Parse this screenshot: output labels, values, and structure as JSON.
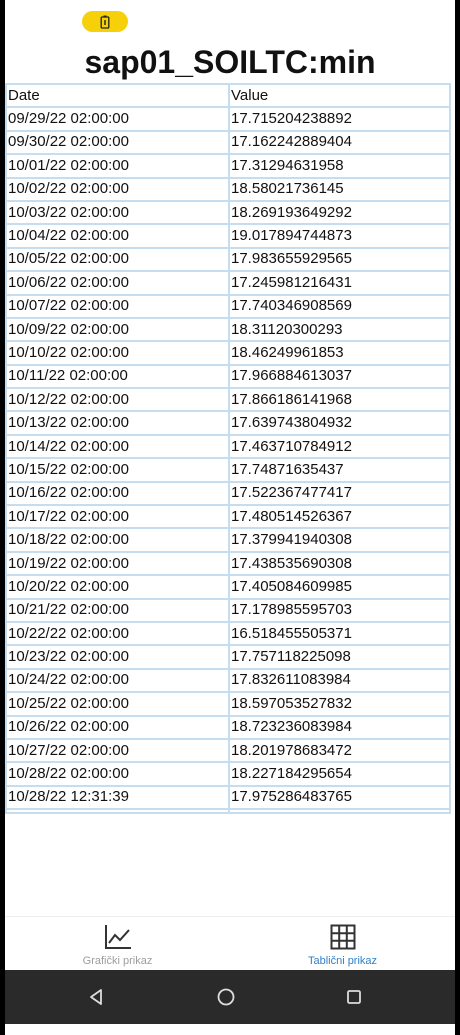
{
  "status": {
    "icon": "battery-icon"
  },
  "title": "sap01_SOILTC:min",
  "table": {
    "headers": [
      "Date",
      "Value"
    ],
    "rows": [
      [
        "09/29/22 02:00:00",
        "17.715204238892"
      ],
      [
        "09/30/22 02:00:00",
        "17.162242889404"
      ],
      [
        "10/01/22 02:00:00",
        "17.31294631958"
      ],
      [
        "10/02/22 02:00:00",
        "18.58021736145"
      ],
      [
        "10/03/22 02:00:00",
        "18.269193649292"
      ],
      [
        "10/04/22 02:00:00",
        "19.017894744873"
      ],
      [
        "10/05/22 02:00:00",
        "17.983655929565"
      ],
      [
        "10/06/22 02:00:00",
        "17.245981216431"
      ],
      [
        "10/07/22 02:00:00",
        "17.740346908569"
      ],
      [
        "10/09/22 02:00:00",
        "18.31120300293"
      ],
      [
        "10/10/22 02:00:00",
        "18.46249961853"
      ],
      [
        "10/11/22 02:00:00",
        "17.966884613037"
      ],
      [
        "10/12/22 02:00:00",
        "17.866186141968"
      ],
      [
        "10/13/22 02:00:00",
        "17.639743804932"
      ],
      [
        "10/14/22 02:00:00",
        "17.463710784912"
      ],
      [
        "10/15/22 02:00:00",
        "17.74871635437"
      ],
      [
        "10/16/22 02:00:00",
        "17.522367477417"
      ],
      [
        "10/17/22 02:00:00",
        "17.480514526367"
      ],
      [
        "10/18/22 02:00:00",
        "17.379941940308"
      ],
      [
        "10/19/22 02:00:00",
        "17.438535690308"
      ],
      [
        "10/20/22 02:00:00",
        "17.405084609985"
      ],
      [
        "10/21/22 02:00:00",
        "17.178985595703"
      ],
      [
        "10/22/22 02:00:00",
        "16.518455505371"
      ],
      [
        "10/23/22 02:00:00",
        "17.757118225098"
      ],
      [
        "10/24/22 02:00:00",
        "17.832611083984"
      ],
      [
        "10/25/22 02:00:00",
        "18.597053527832"
      ],
      [
        "10/26/22 02:00:00",
        "18.723236083984"
      ],
      [
        "10/27/22 02:00:00",
        "18.201978683472"
      ],
      [
        "10/28/22 02:00:00",
        "18.227184295654"
      ],
      [
        "10/28/22 12:31:39",
        "17.975286483765"
      ]
    ]
  },
  "nav": {
    "chart": {
      "label": "Grafički prikaz",
      "icon": "line-chart-icon",
      "color": "#9e9e9e"
    },
    "table": {
      "label": "Tablični prikaz",
      "icon": "grid-icon",
      "color": "#2f7fc9"
    }
  },
  "system": {
    "back": "back-icon",
    "home": "home-icon",
    "recents": "recents-icon"
  },
  "colors": {
    "status_pill": "#f6d10a",
    "grid_border": "#c6dcef",
    "active": "#2f7fc9",
    "inactive": "#9e9e9e"
  }
}
